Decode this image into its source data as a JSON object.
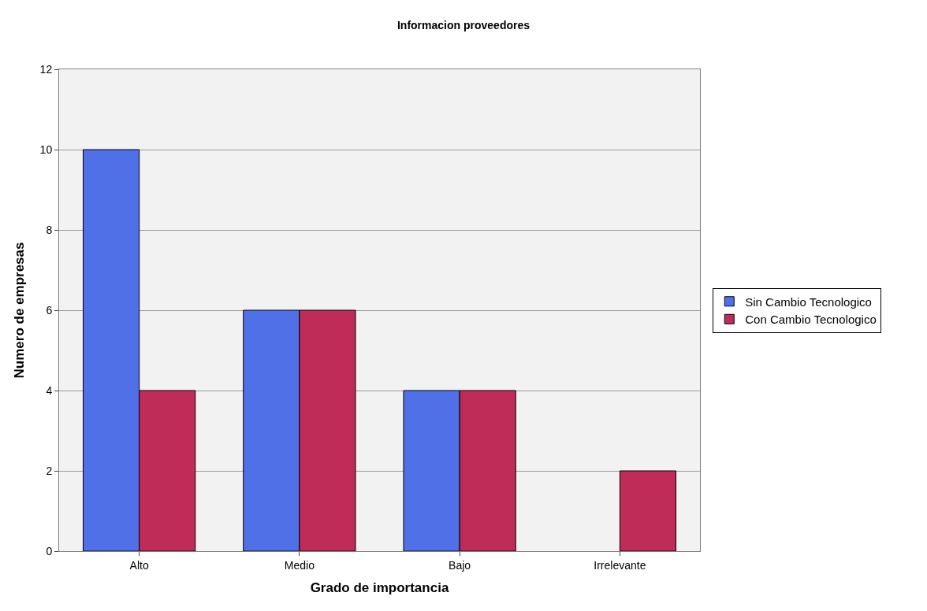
{
  "chart_data": {
    "type": "bar",
    "title": "Informacion proveedores",
    "xlabel": "Grado de importancia",
    "ylabel": "Numero de empresas",
    "categories": [
      "Alto",
      "Medio",
      "Bajo",
      "Irrelevante"
    ],
    "series": [
      {
        "name": "Sin Cambio Tecnologico",
        "color": "#5070e8",
        "values": [
          10,
          6,
          4,
          0
        ]
      },
      {
        "name": "Con Cambio Tecnologico",
        "color": "#c02c58",
        "values": [
          4,
          6,
          4,
          2
        ]
      }
    ],
    "ylim": [
      0,
      12
    ],
    "yticks": [
      0,
      2,
      4,
      6,
      8,
      10,
      12
    ],
    "grid": "y",
    "legend": "right"
  }
}
